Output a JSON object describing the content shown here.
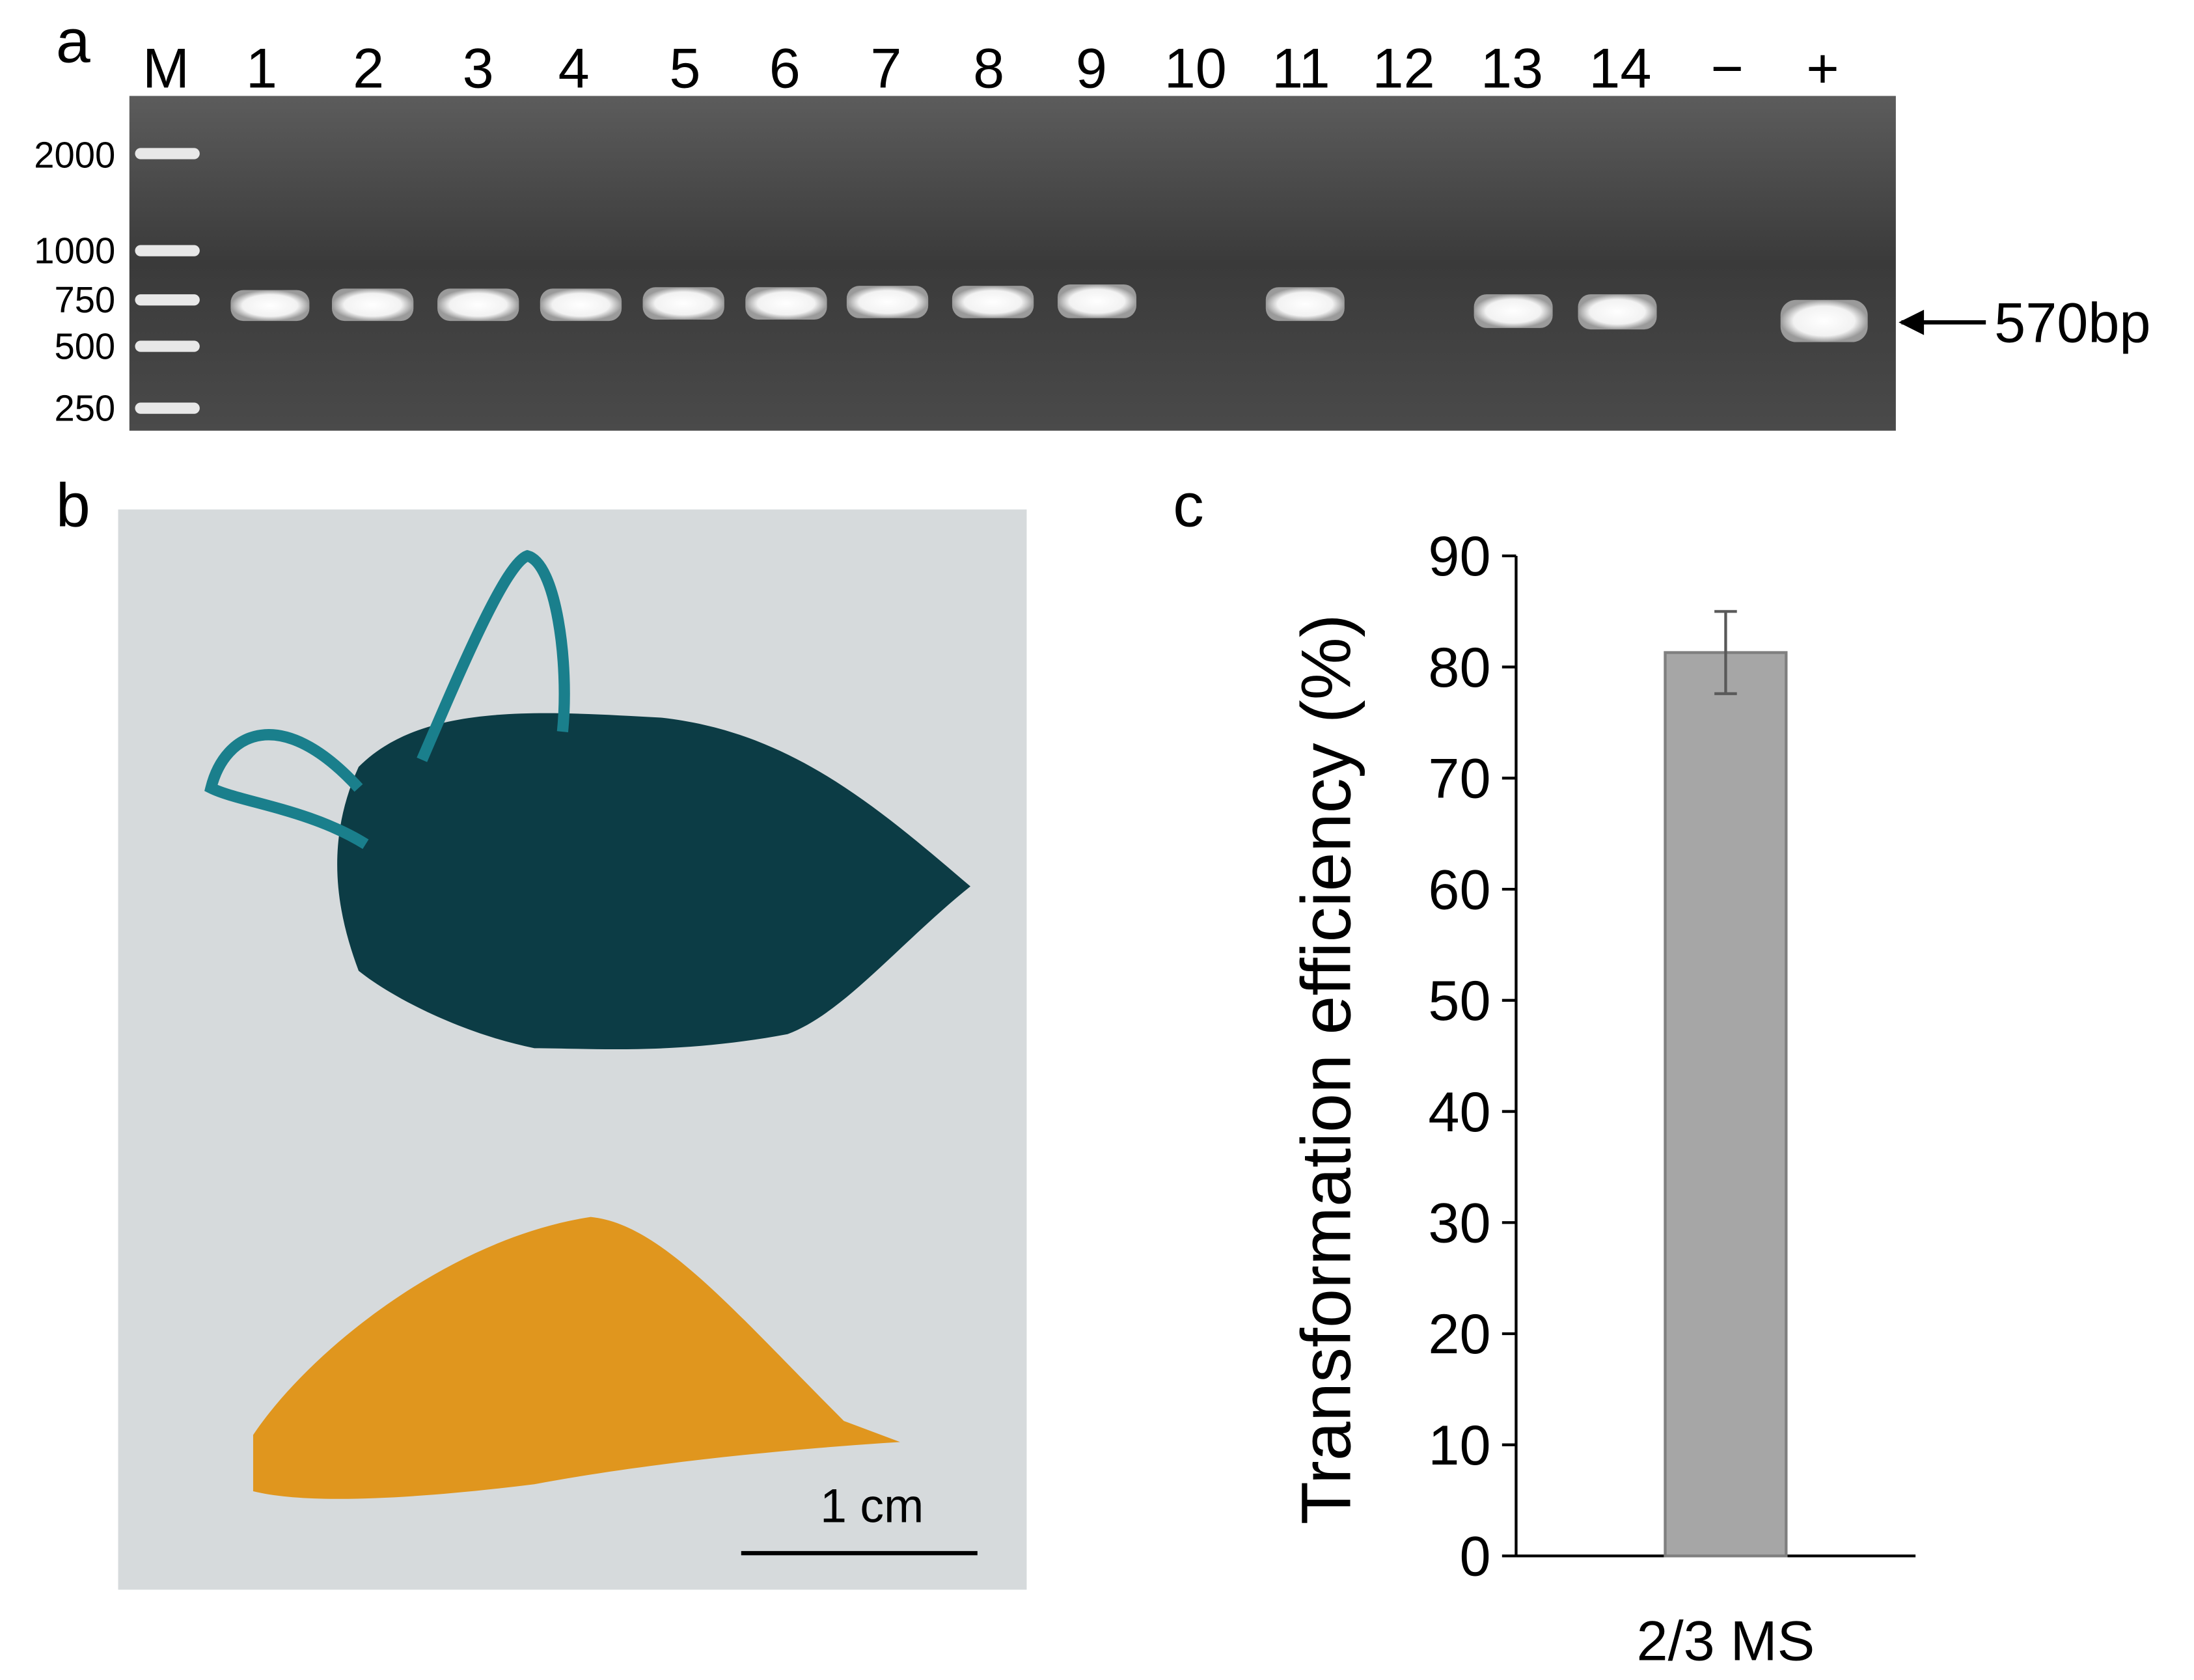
{
  "panel_labels": [
    "a",
    "b",
    "c"
  ],
  "gel": {
    "lanes": [
      "M",
      "1",
      "2",
      "3",
      "4",
      "5",
      "6",
      "7",
      "8",
      "9",
      "10",
      "11",
      "12",
      "13",
      "14",
      "−",
      "+"
    ],
    "ladder": [
      2000,
      1000,
      750,
      500,
      250
    ],
    "band_label": "570bp"
  },
  "photo": {
    "scale_bar": "1 cm"
  },
  "chart_data": {
    "type": "bar",
    "ylabel": "Transformation efficiency (%)",
    "categories": [
      "2/3 MS"
    ],
    "values": [
      81.3
    ],
    "errors": [
      3.7
    ],
    "color": "#a6a6a6",
    "ylim": [
      0,
      90
    ],
    "yticks": [
      0,
      10,
      20,
      30,
      40,
      50,
      60,
      70,
      80,
      90
    ],
    "grid": false
  }
}
